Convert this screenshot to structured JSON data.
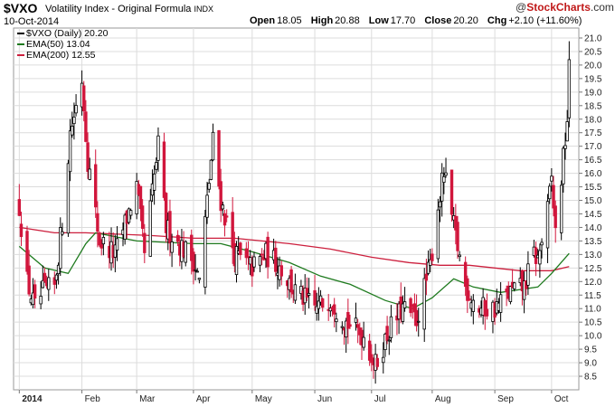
{
  "header": {
    "symbol": "$VXO",
    "description": "Volatility Index - Original Formula",
    "exchange": "INDX",
    "date": "10-Oct-2014",
    "open_label": "Open",
    "open": "18.05",
    "high_label": "High",
    "high": "20.88",
    "low_label": "Low",
    "low": "17.70",
    "close_label": "Close",
    "close": "20.20",
    "chg_label": "Chg",
    "chg": "+2.10 (+11.60%)",
    "logo_prefix": "@",
    "logo_brand": "StockCharts",
    "logo_suffix": ".com"
  },
  "legend": {
    "main": "$VXO (Daily) 20.20",
    "ema50": "EMA(50) 13.04",
    "ema200": "EMA(200) 12.55"
  },
  "colors": {
    "up": "#000000",
    "down": "#d1163c",
    "ema50": "#1e7a1e",
    "ema200": "#cc1f3d",
    "grid": "#dcdcdc",
    "panel_bg": "#ffffff"
  },
  "chart_data": {
    "type": "candlestick",
    "ylim": [
      8.2,
      21.2
    ],
    "y_ticks": [
      8.5,
      9.0,
      9.5,
      10.0,
      10.5,
      11.0,
      11.5,
      12.0,
      12.5,
      13.0,
      13.5,
      14.0,
      14.5,
      15.0,
      15.5,
      16.0,
      16.5,
      17.0,
      17.5,
      18.0,
      18.5,
      19.0,
      19.5,
      20.0,
      20.5,
      21.0
    ],
    "y_tick_labels": [
      "8.5",
      "9.0",
      "9.5",
      "10.0",
      "10.5",
      "11.0",
      "11.5",
      "12.0",
      "12.5",
      "13.0",
      "13.5",
      "14.0",
      "14.5",
      "15.0",
      "15.5",
      "16.0",
      "16.5",
      "17.0",
      "17.5",
      "18.0",
      "18.5",
      "19.0",
      "19.5",
      "20.0",
      "20.5",
      "21.0"
    ],
    "x_month_labels": [
      "2014",
      "Feb",
      "Mar",
      "Apr",
      "May",
      "Jun",
      "Jul",
      "Aug",
      "Sep",
      "Oct"
    ],
    "x_month_dates": [
      "2014-01-02",
      "2014-02-03",
      "2014-03-03",
      "2014-04-01",
      "2014-05-01",
      "2014-06-02",
      "2014-07-01",
      "2014-08-01",
      "2014-09-02",
      "2014-10-01"
    ],
    "x_start": "2013-12-31",
    "x_end": "2014-10-14",
    "close_anchors": [
      [
        "2014-01-02",
        14.8
      ],
      [
        "2014-01-06",
        12.0
      ],
      [
        "2014-01-10",
        11.0
      ],
      [
        "2014-01-14",
        11.6
      ],
      [
        "2014-01-20",
        11.8
      ],
      [
        "2014-01-24",
        14.2
      ],
      [
        "2014-01-28",
        17.5
      ],
      [
        "2014-02-03",
        19.5
      ],
      [
        "2014-02-06",
        16.5
      ],
      [
        "2014-02-12",
        13.5
      ],
      [
        "2014-02-20",
        13.0
      ],
      [
        "2014-03-03",
        15.5
      ],
      [
        "2014-03-07",
        13.0
      ],
      [
        "2014-03-14",
        17.0
      ],
      [
        "2014-03-18",
        14.0
      ],
      [
        "2014-03-26",
        13.3
      ],
      [
        "2014-04-01",
        12.8
      ],
      [
        "2014-04-04",
        12.0
      ],
      [
        "2014-04-11",
        17.2
      ],
      [
        "2014-04-15",
        15.0
      ],
      [
        "2014-04-22",
        13.0
      ],
      [
        "2014-05-01",
        12.5
      ],
      [
        "2014-05-08",
        13.0
      ],
      [
        "2014-05-15",
        12.6
      ],
      [
        "2014-05-22",
        11.7
      ],
      [
        "2014-06-02",
        11.0
      ],
      [
        "2014-06-10",
        11.4
      ],
      [
        "2014-06-18",
        10.5
      ],
      [
        "2014-06-27",
        10.0
      ],
      [
        "2014-07-03",
        8.9
      ],
      [
        "2014-07-10",
        10.2
      ],
      [
        "2014-07-17",
        11.0
      ],
      [
        "2014-07-24",
        10.6
      ],
      [
        "2014-07-31",
        12.6
      ],
      [
        "2014-08-04",
        14.8
      ],
      [
        "2014-08-07",
        16.0
      ],
      [
        "2014-08-12",
        14.0
      ],
      [
        "2014-08-18",
        11.8
      ],
      [
        "2014-08-25",
        11.0
      ],
      [
        "2014-09-02",
        11.0
      ],
      [
        "2014-09-10",
        11.6
      ],
      [
        "2014-09-17",
        11.8
      ],
      [
        "2014-09-22",
        13.0
      ],
      [
        "2014-09-24",
        12.8
      ],
      [
        "2014-09-29",
        14.6
      ],
      [
        "2014-10-01",
        15.8
      ],
      [
        "2014-10-03",
        13.8
      ],
      [
        "2014-10-07",
        16.5
      ],
      [
        "2014-10-09",
        18.05
      ],
      [
        "2014-10-10",
        20.2
      ]
    ],
    "series": [
      {
        "name": "$VXO (Daily)",
        "kind": "candles"
      },
      {
        "name": "EMA(50)",
        "kind": "line",
        "points": [
          [
            "2014-01-02",
            13.3
          ],
          [
            "2014-01-15",
            12.5
          ],
          [
            "2014-01-27",
            12.3
          ],
          [
            "2014-02-05",
            13.4
          ],
          [
            "2014-02-10",
            13.8
          ],
          [
            "2014-03-03",
            13.5
          ],
          [
            "2014-04-01",
            13.4
          ],
          [
            "2014-04-15",
            13.4
          ],
          [
            "2014-05-01",
            13.1
          ],
          [
            "2014-05-20",
            12.7
          ],
          [
            "2014-06-05",
            12.2
          ],
          [
            "2014-06-20",
            11.9
          ],
          [
            "2014-07-08",
            11.3
          ],
          [
            "2014-07-22",
            11.0
          ],
          [
            "2014-08-01",
            11.4
          ],
          [
            "2014-08-12",
            12.1
          ],
          [
            "2014-08-22",
            11.8
          ],
          [
            "2014-09-05",
            11.6
          ],
          [
            "2014-09-24",
            11.8
          ],
          [
            "2014-10-01",
            12.3
          ],
          [
            "2014-10-10",
            13.04
          ]
        ]
      },
      {
        "name": "EMA(200)",
        "kind": "line",
        "points": [
          [
            "2014-01-02",
            14.0
          ],
          [
            "2014-01-20",
            13.8
          ],
          [
            "2014-02-05",
            13.8
          ],
          [
            "2014-03-10",
            13.7
          ],
          [
            "2014-04-01",
            13.6
          ],
          [
            "2014-04-22",
            13.6
          ],
          [
            "2014-05-20",
            13.4
          ],
          [
            "2014-06-10",
            13.2
          ],
          [
            "2014-07-01",
            12.9
          ],
          [
            "2014-07-20",
            12.7
          ],
          [
            "2014-08-05",
            12.6
          ],
          [
            "2014-08-20",
            12.6
          ],
          [
            "2014-09-15",
            12.4
          ],
          [
            "2014-10-01",
            12.4
          ],
          [
            "2014-10-10",
            12.55
          ]
        ]
      }
    ],
    "grid": true,
    "y_axis_position": "right"
  }
}
